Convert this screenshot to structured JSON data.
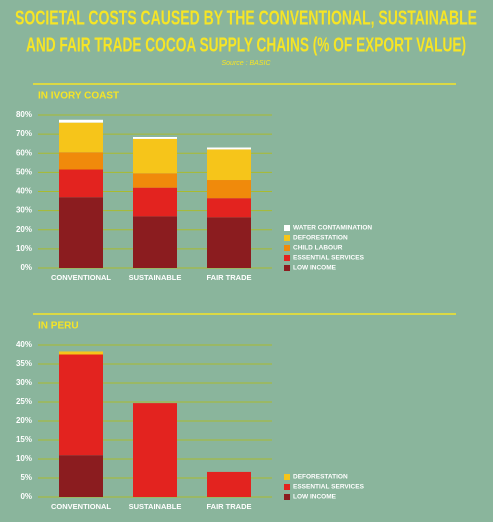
{
  "header": {
    "title_lines": [
      "SOCIETAL COSTS CAUSED BY THE CONVENTIONAL, SUSTAINABLE",
      "AND FAIR TRADE COCOA SUPPLY CHAINS (% OF EXPORT VALUE)"
    ],
    "source": "Source : BASIC"
  },
  "chart_data": [
    {
      "type": "stacked_bar",
      "title": "IN IVORY COAST",
      "categories": [
        "CONVENTIONAL",
        "SUSTAINABLE",
        "FAIR TRADE"
      ],
      "series": [
        {
          "name": "LOW INCOME",
          "color": "#8b1c1f",
          "values": [
            37,
            27,
            26.5
          ]
        },
        {
          "name": "ESSENTIAL SERVICES",
          "color": "#e3231f",
          "values": [
            14.5,
            15,
            10
          ]
        },
        {
          "name": "CHILD LABOUR",
          "color": "#f08a0b",
          "values": [
            9,
            7.5,
            9.5
          ]
        },
        {
          "name": "DEFORESTATION",
          "color": "#f6c51a",
          "values": [
            15.5,
            18,
            16
          ]
        },
        {
          "name": "WATER CONTAMINATION",
          "color": "#ffffff",
          "values": [
            1.5,
            1,
            1
          ]
        }
      ],
      "ylim": [
        0,
        80
      ],
      "yticks": [
        {
          "value": 0,
          "label": "0%"
        },
        {
          "value": 10,
          "label": "10%"
        },
        {
          "value": 20,
          "label": "20%"
        },
        {
          "value": 30,
          "label": "30%"
        },
        {
          "value": 40,
          "label": "40%"
        },
        {
          "value": 50,
          "label": "50%"
        },
        {
          "value": 60,
          "label": "60%"
        },
        {
          "value": 70,
          "label": "70%"
        },
        {
          "value": 80,
          "label": "80%"
        }
      ],
      "grid": true,
      "legend": "lower right"
    },
    {
      "type": "stacked_bar",
      "title": "IN PERU",
      "categories": [
        "CONVENTIONAL",
        "SUSTAINABLE",
        "FAIR TRADE"
      ],
      "series": [
        {
          "name": "LOW INCOME",
          "color": "#8b1c1f",
          "values": [
            11,
            0,
            0
          ]
        },
        {
          "name": "ESSENTIAL SERVICES",
          "color": "#e3231f",
          "values": [
            26.5,
            24.7,
            6.6
          ]
        },
        {
          "name": "DEFORESTATION",
          "color": "#f6c51a",
          "values": [
            0.8,
            0,
            0
          ]
        }
      ],
      "ylim": [
        0,
        40
      ],
      "yticks": [
        {
          "value": 0,
          "label": "0%"
        },
        {
          "value": 5,
          "label": "5%"
        },
        {
          "value": 10,
          "label": "10%"
        },
        {
          "value": 15,
          "label": "15%"
        },
        {
          "value": 20,
          "label": "20%"
        },
        {
          "value": 25,
          "label": "25%"
        },
        {
          "value": 30,
          "label": "30%"
        },
        {
          "value": 35,
          "label": "35%"
        },
        {
          "value": 40,
          "label": "40%"
        }
      ],
      "grid": true,
      "legend": "lower right"
    }
  ]
}
